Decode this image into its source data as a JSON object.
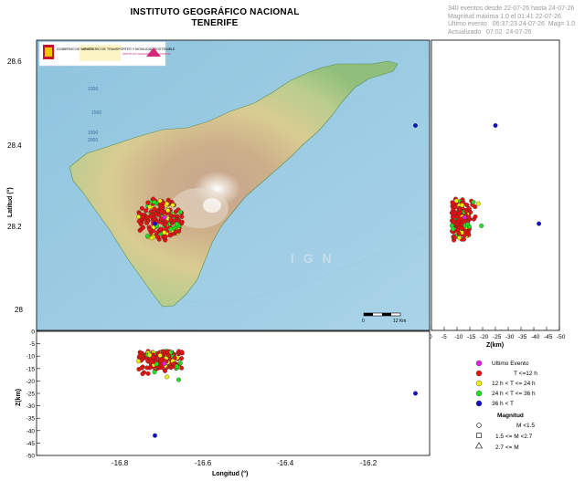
{
  "title": "INSTITUTO GEOGRÁFICO NACIONAL",
  "subtitle": "TENERIFE",
  "info_lines": [
    "340 eventos desde 22-07-26 hasta 24-07-26",
    "Magnitud máxima 1.0 el 01:41 22-07-26",
    "Último evento   06:37:23 24-07-26  Mag= 1.0",
    "Actualizado   07:02  24-07-26"
  ],
  "map": {
    "watermark": "I G N",
    "y_axis_label": "Latitud (°)",
    "x_axis_label": "Longitud (°)",
    "lat_ticks": [
      "28.6",
      "28.4",
      "28.2",
      "28"
    ],
    "lon_ticks": [
      "-16.8",
      "-16.6",
      "-16.4",
      "-16.2"
    ],
    "scale_bar": {
      "start_label": "0",
      "end_label": "12 Km"
    },
    "bathymetry_labels": [
      "1000",
      "1500",
      "1500",
      "2000"
    ],
    "logo_text_1": "GOBIERNO DE ESPAÑA",
    "logo_text_2": "MINISTERIO DE TRANSPORTES Y MOVILIDAD SOSTENIBLE",
    "logo_text_3": "INSTITUTO GEOGRÁFICO NACIONAL"
  },
  "side_panel": {
    "x_axis_label": "Z(km)",
    "z_ticks": [
      "0",
      "-5",
      "-10",
      "-15",
      "-20",
      "-25",
      "-30",
      "-35",
      "-40",
      "-45",
      "-50"
    ]
  },
  "bottom_panel": {
    "y_axis_label": "Z(km)",
    "z_ticks": [
      "0",
      "-5",
      "-10",
      "-15",
      "-20",
      "-25",
      "-30",
      "-35",
      "-40",
      "-45",
      "-50"
    ]
  },
  "legend": {
    "items": [
      {
        "label": "Ultimo Evento",
        "color": "#e020e0"
      },
      {
        "label": "T <=12 h",
        "color": "#e81010"
      },
      {
        "label": "12 h  < T <= 24 h",
        "color": "#f0f000"
      },
      {
        "label": "24 h  < T <= 36 h",
        "color": "#20e020"
      },
      {
        "label": "36 h  <  T",
        "color": "#1010c8"
      }
    ],
    "magnitude_title": "Magnitud",
    "magnitude_items": [
      "M <1.5",
      "1.5 <= M <2.7",
      "2.7 <= M"
    ]
  },
  "chart_data": {
    "type": "scatter",
    "events_count": 340,
    "x": "longitude",
    "y": "latitude",
    "z": "depth_km",
    "isolated_events": [
      {
        "longitude": -16.13,
        "latitude": 28.45,
        "depth_km": -25,
        "class": "36 h < T"
      },
      {
        "longitude": -16.68,
        "latitude": 28.22,
        "depth_km": -42,
        "class": "36 h < T"
      },
      {
        "longitude": -16.66,
        "latitude": 28.235,
        "depth_km": -13,
        "class": "Ultimo Evento"
      }
    ],
    "cluster": {
      "longitude_range": [
        -16.72,
        -16.62
      ],
      "latitude_range": [
        28.18,
        28.28
      ],
      "depth_range_km": [
        -5,
        -22
      ]
    },
    "lat_ylim": [
      27.97,
      28.65
    ],
    "lon_xlim": [
      -16.93,
      -16.1
    ],
    "depth_lim_km": [
      0,
      -50
    ]
  }
}
